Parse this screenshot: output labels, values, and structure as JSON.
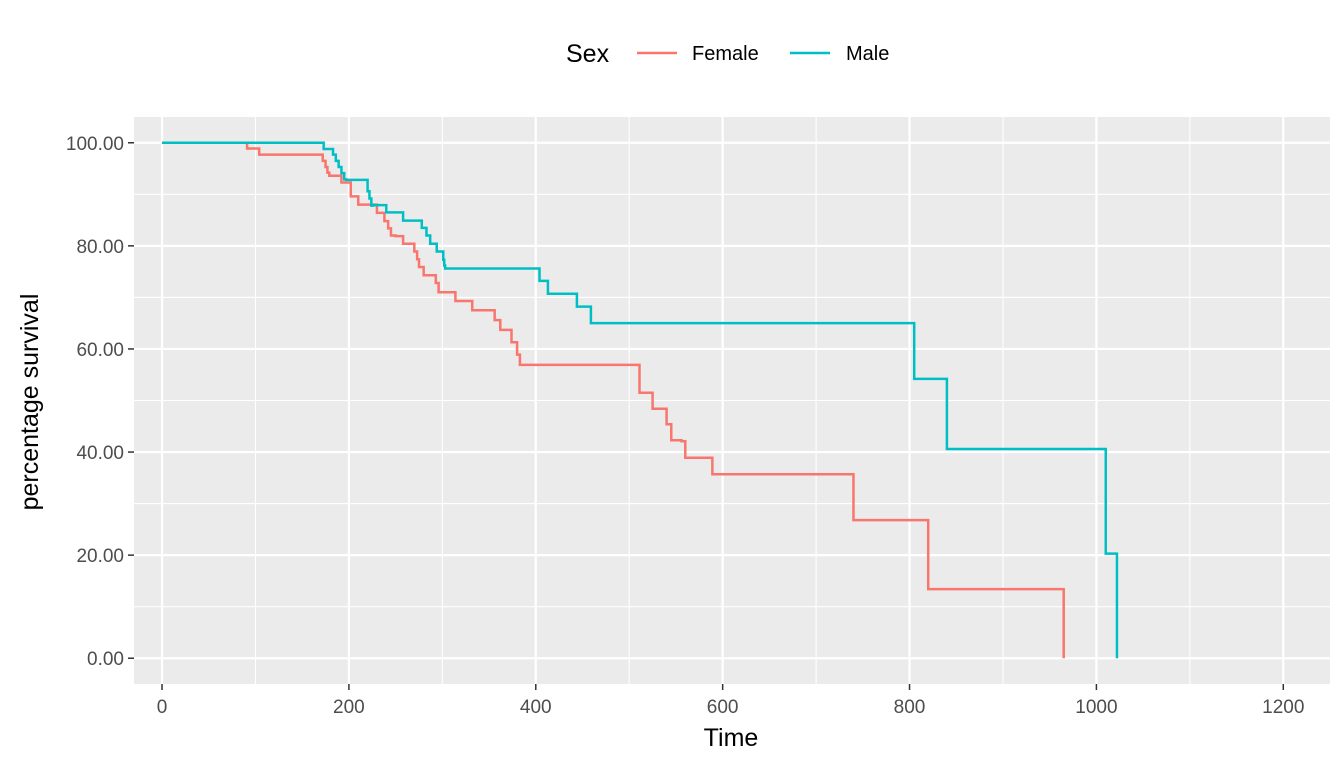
{
  "chart_data": {
    "type": "line",
    "step": true,
    "xlabel": "Time",
    "ylabel": "percentage survival",
    "xlim": [
      -30,
      1250
    ],
    "ylim": [
      -5,
      105
    ],
    "x_ticks": [
      0,
      200,
      400,
      600,
      800,
      1000,
      1200
    ],
    "x_tick_labels": [
      "0",
      "200",
      "400",
      "600",
      "800",
      "1000",
      "1200"
    ],
    "y_ticks": [
      0,
      20,
      40,
      60,
      80,
      100
    ],
    "y_tick_labels": [
      "0.00",
      "20.00",
      "40.00",
      "60.00",
      "80.00",
      "100.00"
    ],
    "grid": true,
    "panel_background": "#ebebeb",
    "legend": {
      "title": "Sex",
      "position": "top"
    },
    "series": [
      {
        "name": "Female",
        "color": "#f8766d",
        "x": [
          0,
          91,
          104,
          172,
          175,
          177,
          179,
          192,
          202,
          210,
          220,
          230,
          238,
          242,
          245,
          250,
          258,
          270,
          273,
          275,
          280,
          293,
          296,
          300,
          314,
          332,
          356,
          362,
          374,
          380,
          383,
          388,
          511,
          525,
          540,
          545,
          556,
          560,
          589,
          740,
          820,
          965
        ],
        "y": [
          100,
          98.9,
          97.7,
          96.5,
          95.3,
          94.2,
          93.6,
          92.3,
          89.6,
          88.0,
          88.0,
          86.4,
          84.8,
          83.4,
          82.0,
          81.9,
          80.4,
          78.9,
          77.4,
          75.9,
          74.3,
          72.8,
          71.0,
          71.0,
          69.3,
          67.5,
          65.6,
          63.7,
          61.3,
          58.9,
          56.9,
          56.9,
          51.5,
          48.4,
          45.4,
          42.3,
          42.1,
          38.9,
          35.7,
          26.8,
          13.4,
          0
        ]
      },
      {
        "name": "Male",
        "color": "#00bfc4",
        "x": [
          0,
          173,
          183,
          186,
          189,
          192,
          195,
          197,
          199,
          220,
          222,
          224,
          226,
          240,
          258,
          278,
          283,
          287,
          294,
          301,
          302,
          303,
          404,
          413,
          444,
          459,
          805,
          840,
          1010,
          1022
        ],
        "y": [
          100,
          98.8,
          97.7,
          96.5,
          95.3,
          94.1,
          92.9,
          92.8,
          92.8,
          90.6,
          89.2,
          87.8,
          87.9,
          86.5,
          84.9,
          83.5,
          82.0,
          80.4,
          78.9,
          77.3,
          76.2,
          75.6,
          73.2,
          70.7,
          68.2,
          65.0,
          54.2,
          40.6,
          20.3,
          0
        ]
      }
    ]
  }
}
